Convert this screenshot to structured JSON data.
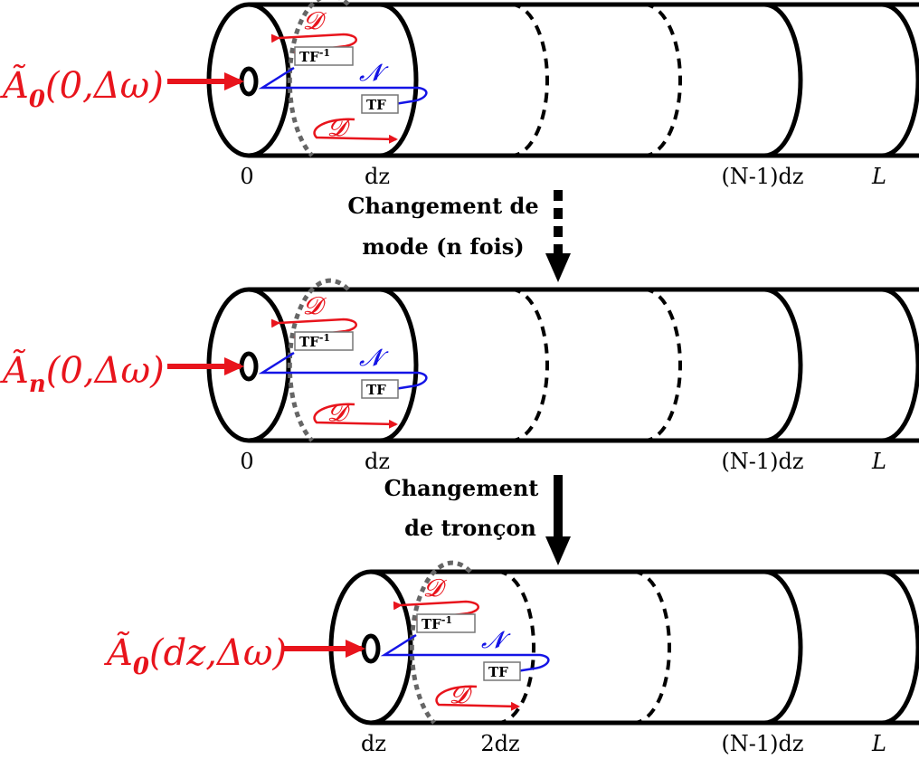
{
  "colors": {
    "red": "#e8141c",
    "blue": "#1414e6",
    "black": "#000000",
    "grey": "#666666"
  },
  "common": {
    "dispersion": "𝓓",
    "nonlinear": "𝓝",
    "ift": "TF",
    "ift_sup": "-1",
    "ft": "TF",
    "end_label": "L"
  },
  "row1": {
    "input_main": "Ã",
    "input_sub": "0",
    "input_args": "(0,Δω)",
    "tick_start": "0",
    "tick_step": "dz",
    "tick_last": "(N-1)dz"
  },
  "row2": {
    "input_main": "Ã",
    "input_sub": "n",
    "input_args": "(0,Δω)",
    "tick_start": "0",
    "tick_step": "dz",
    "tick_last": "(N-1)dz"
  },
  "row3": {
    "input_main": "Ã",
    "input_sub": "0",
    "input_args": "(dz,Δω)",
    "tick_start": "dz",
    "tick_step": "2dz",
    "tick_last": "(N-1)dz"
  },
  "transition1": {
    "line1": "Changement de",
    "line2": "mode (n fois)"
  },
  "transition2": {
    "line1": "Changement",
    "line2": "de tronçon"
  }
}
